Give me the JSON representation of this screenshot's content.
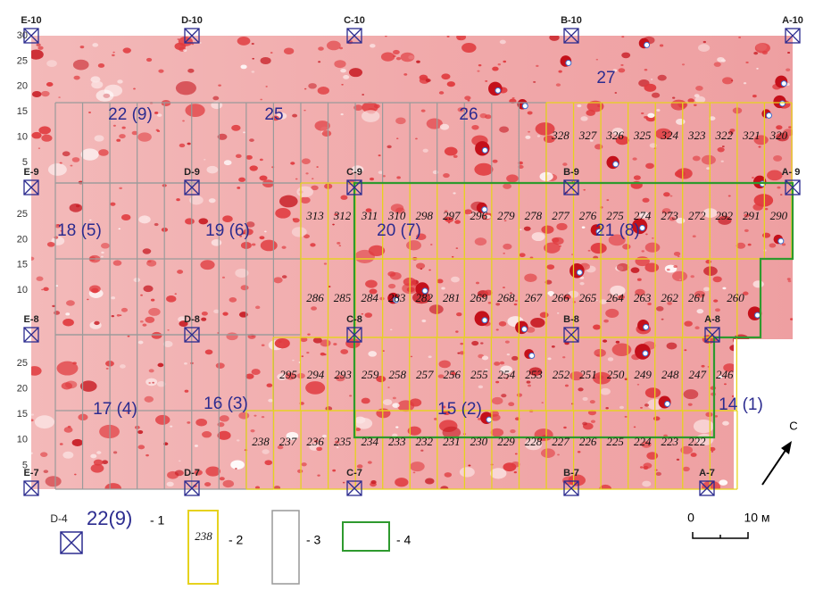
{
  "grid_points": [
    "E-10",
    "D-10",
    "C-10",
    "B-10",
    "A-10",
    "E-9",
    "D-9",
    "C-9",
    "B-9",
    "A- 9",
    "E-8",
    "D-8",
    "C-8",
    "B-8",
    "A-8",
    "E-7",
    "D-7",
    "C-7",
    "B-7",
    "A-7"
  ],
  "y_labels": {
    "band_1": [
      "30",
      "25",
      "20",
      "15",
      "10",
      "5"
    ],
    "band_2": [
      "25",
      "20",
      "15",
      "10"
    ],
    "band_3": [
      "25",
      "20",
      "15",
      "10",
      "5"
    ]
  },
  "areas": [
    "27",
    "22 (9)",
    "25",
    "26",
    "18 (5)",
    "19 (6)",
    "20 (7)",
    "21 (8)",
    "17 (4)",
    "16 (3)",
    "15 (2)",
    "14 (1)"
  ],
  "cells": {
    "row_1": [
      "328",
      "327",
      "326",
      "325",
      "324",
      "323",
      "322",
      "321",
      "320"
    ],
    "row_2": [
      "313",
      "312",
      "311",
      "310",
      "298",
      "297",
      "296",
      "279",
      "278",
      "277",
      "276",
      "275",
      "274",
      "273",
      "272",
      "292",
      "291",
      "290"
    ],
    "row_3": [
      "286",
      "285",
      "284",
      "283",
      "282",
      "281",
      "269",
      "268",
      "267",
      "266",
      "265",
      "264",
      "263",
      "262",
      "261",
      "260"
    ],
    "row_4": [
      "295",
      "294",
      "293",
      "259",
      "258",
      "257",
      "256",
      "255",
      "254",
      "253",
      "252",
      "251",
      "250",
      "249",
      "248",
      "247",
      "246"
    ],
    "row_5": [
      "238",
      "237",
      "236",
      "235",
      "234",
      "233",
      "232",
      "231",
      "230",
      "229",
      "228",
      "227",
      "226",
      "225",
      "224",
      "223",
      "222"
    ]
  },
  "legend": {
    "point": "D-4",
    "area": "22(9)",
    "item_1": "- 1",
    "cell": "238",
    "item_2": "- 2",
    "item_3": "- 3",
    "item_4": "- 4"
  },
  "scale": {
    "start": "0",
    "end": "10 м"
  },
  "north": "C"
}
